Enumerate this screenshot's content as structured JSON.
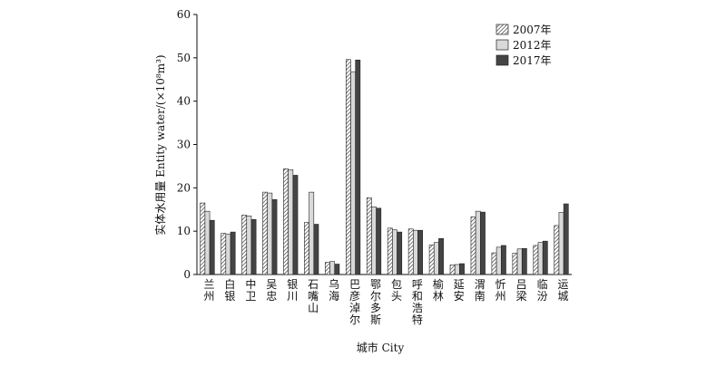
{
  "chart_data": {
    "type": "bar",
    "title": "",
    "xlabel": "城市 City",
    "ylabel": "实体水用量 Entity water/(×10⁸m³)",
    "ylim": [
      0,
      60
    ],
    "yticks": [
      0,
      10,
      20,
      30,
      40,
      50,
      60
    ],
    "grid": false,
    "legend_position": "top-right",
    "categories": [
      "兰州",
      "白银",
      "中卫",
      "吴忠",
      "银川",
      "石嘴山",
      "乌海",
      "巴彦淖尔",
      "鄂尔多斯",
      "包头",
      "呼和浩特",
      "榆林",
      "延安",
      "渭南",
      "忻州",
      "吕梁",
      "临汾",
      "运城"
    ],
    "series": [
      {
        "name": "2007年",
        "pattern": "hatch",
        "color": "#ffffff",
        "values": [
          16.5,
          9.5,
          13.7,
          19.0,
          24.4,
          12.0,
          2.8,
          49.6,
          17.7,
          10.7,
          10.5,
          6.8,
          2.2,
          13.3,
          5.0,
          4.9,
          6.7,
          11.3
        ]
      },
      {
        "name": "2012年",
        "pattern": "solid",
        "color": "#d9d9d9",
        "values": [
          14.6,
          9.3,
          13.5,
          18.8,
          24.2,
          19.0,
          3.0,
          46.8,
          15.6,
          10.3,
          10.2,
          7.4,
          2.3,
          14.6,
          6.3,
          5.9,
          7.4,
          14.3
        ]
      },
      {
        "name": "2017年",
        "pattern": "solid",
        "color": "#444444",
        "values": [
          12.5,
          9.8,
          12.7,
          17.3,
          22.9,
          11.6,
          2.4,
          49.5,
          15.3,
          9.8,
          10.2,
          8.3,
          2.5,
          14.4,
          6.7,
          6.0,
          7.7,
          16.3
        ]
      }
    ]
  }
}
